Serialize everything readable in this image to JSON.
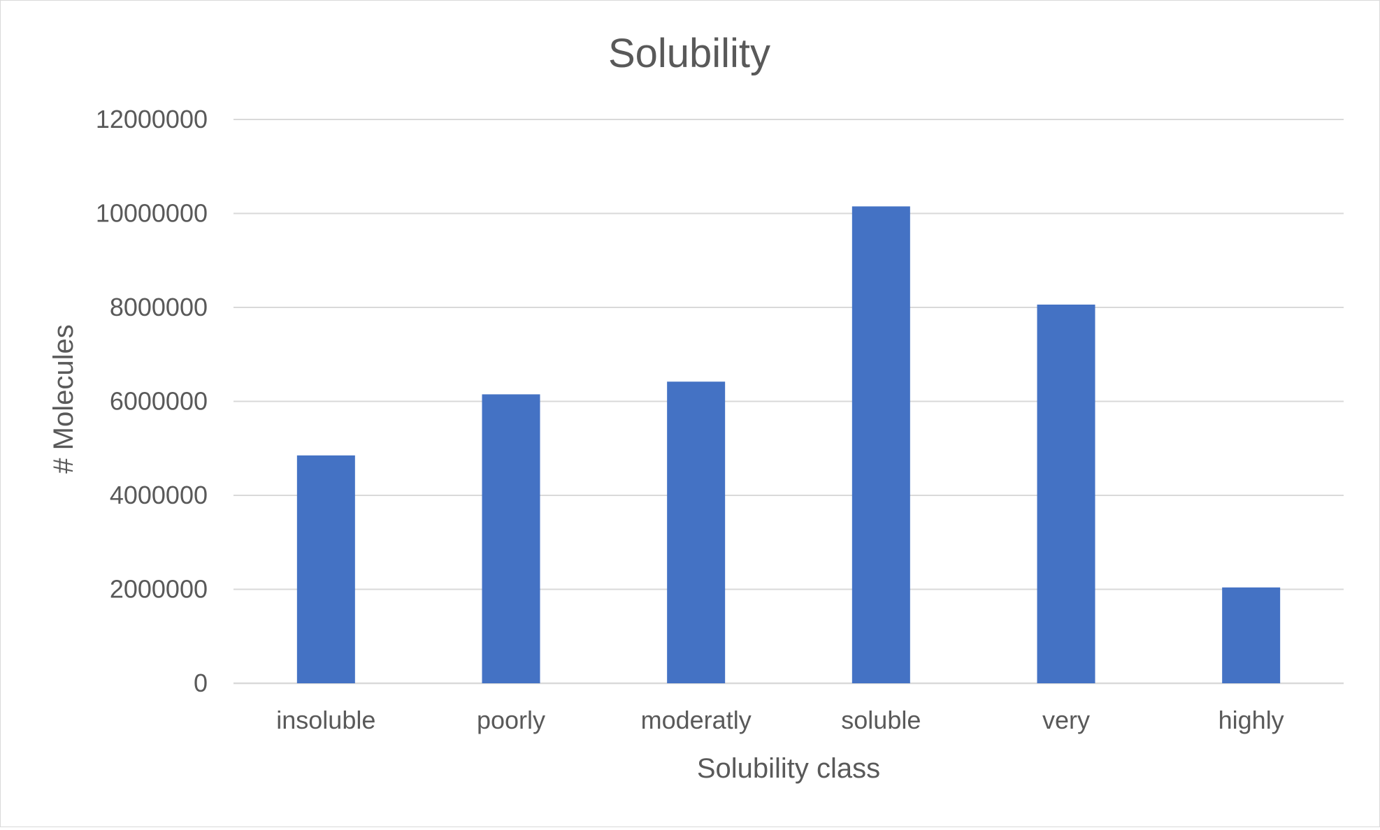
{
  "chart_data": {
    "type": "bar",
    "title": "Solubility",
    "xlabel": "Solubility class",
    "ylabel": "# Molecules",
    "categories": [
      "insoluble",
      "poorly",
      "moderatly",
      "soluble",
      "very",
      "highly"
    ],
    "values": [
      4850000,
      6150000,
      6420000,
      10150000,
      8060000,
      2040000
    ],
    "ylim": [
      0,
      12000000
    ],
    "yticks": [
      "0",
      "2000000",
      "4000000",
      "6000000",
      "8000000",
      "10000000",
      "12000000"
    ],
    "grid": true,
    "legend": "none",
    "bar_color": "#4472C4",
    "grid_color": "#d9d9d9",
    "text_color": "#595959"
  }
}
